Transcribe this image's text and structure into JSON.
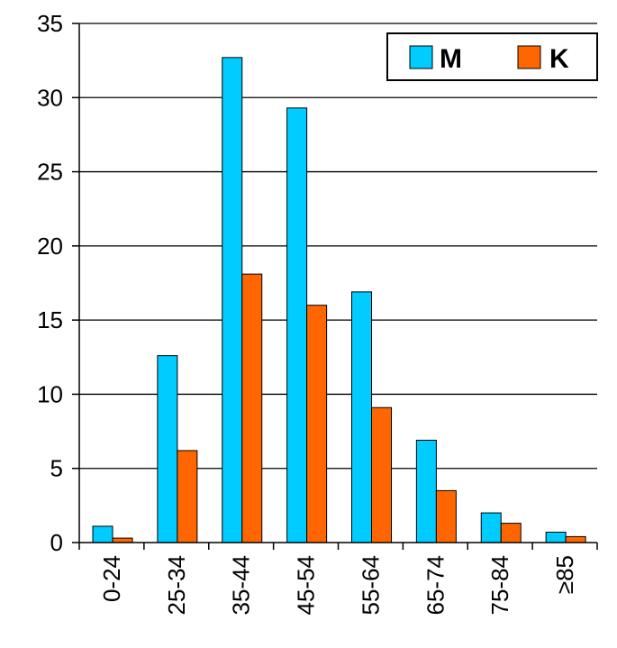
{
  "chart_data": {
    "type": "bar",
    "categories": [
      "0-24",
      "25-34",
      "35-44",
      "45-54",
      "55-64",
      "65-74",
      "75-84",
      "≥85"
    ],
    "series": [
      {
        "name": "M",
        "color": "#00CCFF",
        "values": [
          1.1,
          12.6,
          32.7,
          29.3,
          16.9,
          6.9,
          2.0,
          0.7
        ]
      },
      {
        "name": "K",
        "color": "#FF6600",
        "values": [
          0.3,
          6.2,
          18.1,
          16.0,
          9.1,
          3.5,
          1.3,
          0.4
        ]
      }
    ],
    "title": "",
    "xlabel": "",
    "ylabel": "",
    "ylim": [
      0,
      35
    ],
    "yticks": [
      0,
      5,
      10,
      15,
      20,
      25,
      30,
      35
    ],
    "grid": true,
    "legend_position": "top-right"
  }
}
